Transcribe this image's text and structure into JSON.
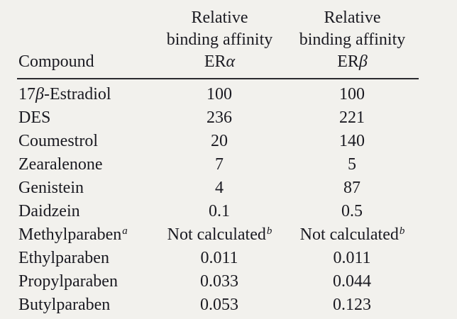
{
  "background_color": "#f2f1ed",
  "text_color": "#1a1a21",
  "rule_color": "#2b2b2e",
  "table": {
    "headers": {
      "compound": "Compound",
      "col2": {
        "line1": "Relative",
        "line2": "binding affinity",
        "receptor_prefix": "ER",
        "receptor_greek": "α"
      },
      "col3": {
        "line1": "Relative",
        "line2": "binding affinity",
        "receptor_prefix": "ER",
        "receptor_greek": "β"
      }
    },
    "rows": [
      {
        "pre": "17",
        "greek": "β",
        "post": "-Estradiol",
        "sup": "",
        "era": "100",
        "era_sup": "",
        "erb": "100",
        "erb_sup": ""
      },
      {
        "pre": "DES",
        "greek": "",
        "post": "",
        "sup": "",
        "era": "236",
        "era_sup": "",
        "erb": "221",
        "erb_sup": ""
      },
      {
        "pre": "Coumestrol",
        "greek": "",
        "post": "",
        "sup": "",
        "era": "20",
        "era_sup": "",
        "erb": "140",
        "erb_sup": ""
      },
      {
        "pre": "Zearalenone",
        "greek": "",
        "post": "",
        "sup": "",
        "era": "7",
        "era_sup": "",
        "erb": "5",
        "erb_sup": ""
      },
      {
        "pre": "Genistein",
        "greek": "",
        "post": "",
        "sup": "",
        "era": "4",
        "era_sup": "",
        "erb": "87",
        "erb_sup": ""
      },
      {
        "pre": "Daidzein",
        "greek": "",
        "post": "",
        "sup": "",
        "era": "0.1",
        "era_sup": "",
        "erb": "0.5",
        "erb_sup": ""
      },
      {
        "pre": "Methylparaben",
        "greek": "",
        "post": "",
        "sup": "a",
        "era": "Not calculated",
        "era_sup": "b",
        "erb": "Not calculated",
        "erb_sup": "b"
      },
      {
        "pre": "Ethylparaben",
        "greek": "",
        "post": "",
        "sup": "",
        "era": "0.011",
        "era_sup": "",
        "erb": "0.011",
        "erb_sup": ""
      },
      {
        "pre": "Propylparaben",
        "greek": "",
        "post": "",
        "sup": "",
        "era": "0.033",
        "era_sup": "",
        "erb": "0.044",
        "erb_sup": ""
      },
      {
        "pre": "Butylparaben",
        "greek": "",
        "post": "",
        "sup": "",
        "era": "0.053",
        "era_sup": "",
        "erb": "0.123",
        "erb_sup": ""
      }
    ]
  },
  "chart_data": {
    "type": "table",
    "columns": [
      "Compound",
      "Relative binding affinity ERα",
      "Relative binding affinity ERβ"
    ],
    "rows": [
      [
        "17β-Estradiol",
        "100",
        "100"
      ],
      [
        "DES",
        "236",
        "221"
      ],
      [
        "Coumestrol",
        "20",
        "140"
      ],
      [
        "Zearalenone",
        "7",
        "5"
      ],
      [
        "Genistein",
        "4",
        "87"
      ],
      [
        "Daidzein",
        "0.1",
        "0.5"
      ],
      [
        "Methylparabenᵃ",
        "Not calculatedᵇ",
        "Not calculatedᵇ"
      ],
      [
        "Ethylparaben",
        "0.011",
        "0.011"
      ],
      [
        "Propylparaben",
        "0.033",
        "0.044"
      ],
      [
        "Butylparaben",
        "0.053",
        "0.123"
      ]
    ],
    "footnote_markers": [
      "a",
      "b"
    ]
  }
}
